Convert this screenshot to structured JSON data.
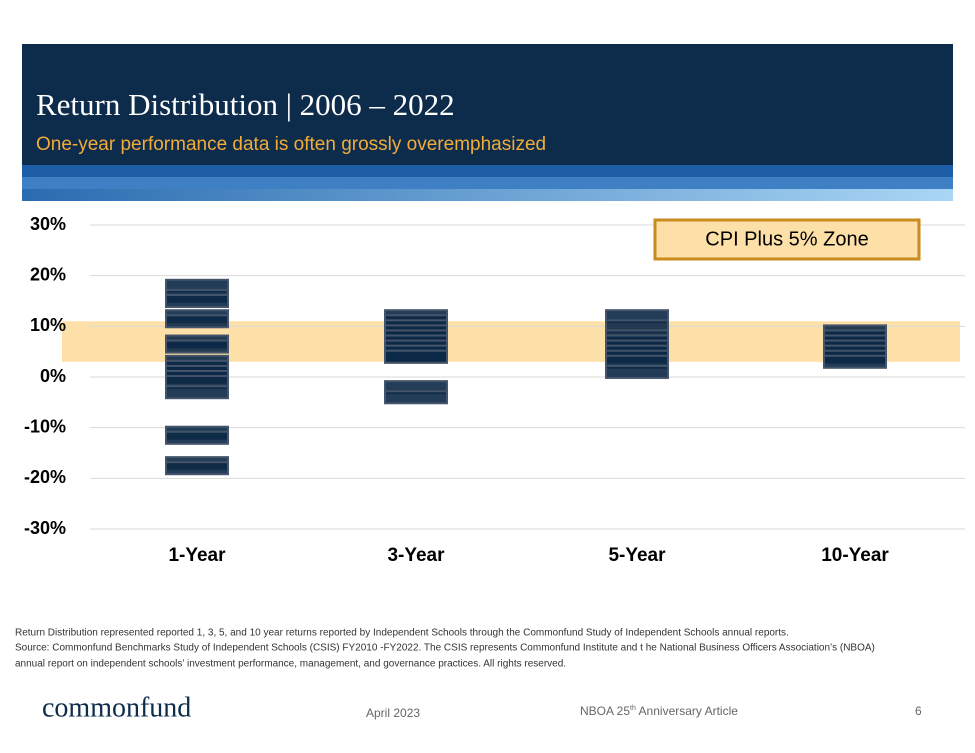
{
  "chart_data": {
    "type": "marker-strip",
    "title": "Return Distribution | 2006 – 2022",
    "subtitle": "One-year performance data is often grossly overemphasized",
    "categories": [
      "1-Year",
      "3-Year",
      "5-Year",
      "10-Year"
    ],
    "values": [
      [
        18,
        16,
        15,
        12,
        11,
        7,
        6,
        3,
        2,
        1,
        0,
        -1,
        -3,
        -11,
        -12,
        -17,
        -18
      ],
      [
        12,
        11,
        10,
        9,
        8,
        7,
        6,
        5,
        4,
        4,
        -2,
        -4
      ],
      [
        12,
        10,
        8,
        7,
        6,
        5,
        4,
        3,
        1
      ],
      [
        9,
        8,
        7,
        6,
        5,
        4,
        3
      ]
    ],
    "color": "#0b2846",
    "edge_color": "#44546a",
    "ylim": [
      -30,
      30
    ],
    "yticks": [
      {
        "value": -30,
        "label": "-30%"
      },
      {
        "value": -20,
        "label": "-20%"
      },
      {
        "value": -10,
        "label": "-10%"
      },
      {
        "value": 0,
        "label": "0%"
      },
      {
        "value": 10,
        "label": "10%"
      },
      {
        "value": 20,
        "label": "20%"
      },
      {
        "value": 30,
        "label": "30%"
      }
    ],
    "grid": true,
    "zone": {
      "label": "CPI Plus 5% Zone",
      "range": [
        3,
        11
      ],
      "color": "#fde0a8"
    }
  },
  "footnote": [
    "Return Distribution represented reported    1, 3, 5, and 10 year  returns reported by Independent Schools through the Commonfund Study of Independent Schools annual reports.",
    "Source: Commonfund Benchmarks Study of Independent Schools (CSIS) FY2010      -FY2022. The CSIS represents Commonfund Institute and t     he National Business Officers Association’s (NBOA)",
    "annual report on independent schools’ investment performance, management, and governance practices. All rights reserved."
  ],
  "footer": {
    "logo": "commonfund",
    "date": "April 2023",
    "article": [
      "NBOA 25",
      "th",
      " Anniversary Article"
    ],
    "page": "6"
  }
}
